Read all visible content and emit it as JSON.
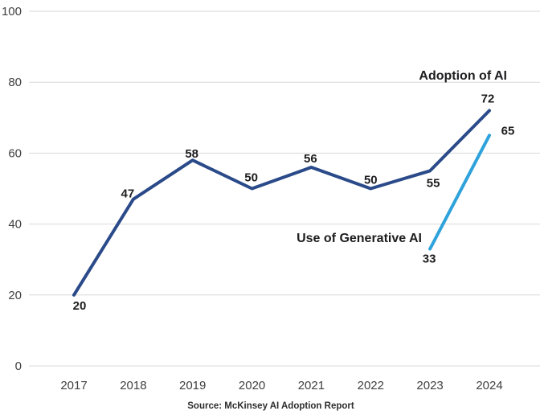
{
  "chart_data": {
    "type": "line",
    "x": [
      "2017",
      "2018",
      "2019",
      "2020",
      "2021",
      "2022",
      "2023",
      "2024"
    ],
    "series": [
      {
        "name": "Adoption of AI",
        "color": "#2a4a89",
        "values": [
          20,
          47,
          58,
          50,
          56,
          50,
          55,
          72
        ]
      },
      {
        "name": "Use of Generative AI",
        "color": "#2ea2db",
        "values": [
          null,
          null,
          null,
          null,
          null,
          null,
          33,
          65
        ]
      }
    ],
    "yticks": [
      0,
      20,
      40,
      60,
      80,
      100
    ],
    "ylim": [
      0,
      100
    ],
    "grid": "horizontal-only",
    "legend": "inline-annotations-near-lines",
    "data_labels_visible": true,
    "source": "Source: McKinsey AI Adoption Report"
  },
  "colors": {
    "gridline": "#d9d9d9",
    "tick_text": "#404040",
    "label_text": "#1d1d1f",
    "source_text": "#2d2d2d",
    "background": "#ffffff"
  }
}
